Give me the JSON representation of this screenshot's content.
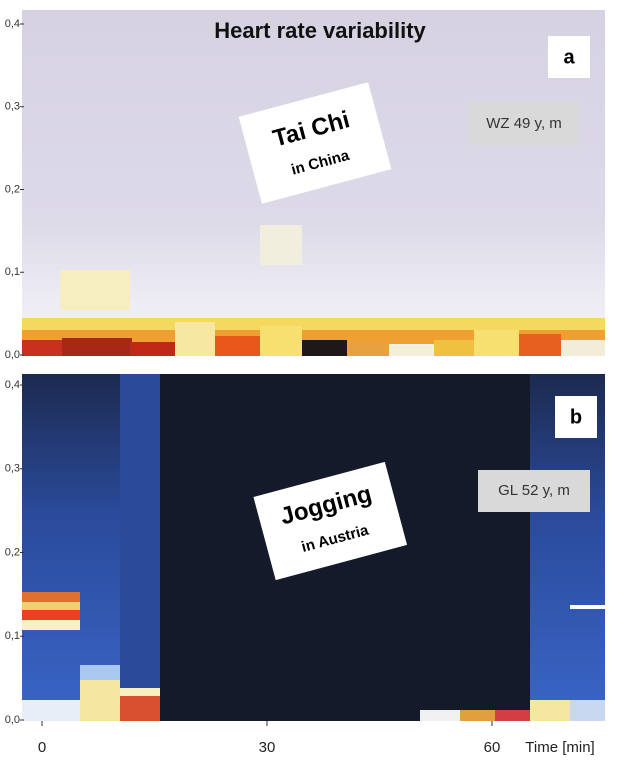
{
  "title": "Heart rate variability",
  "panels": [
    {
      "label": "a",
      "activity": "Tai Chi",
      "location": "in China",
      "subject": "WZ 49 y, m",
      "yticks": [
        {
          "value": 0,
          "label": "0,0"
        },
        {
          "value": 0.1,
          "label": "0,1"
        },
        {
          "value": 0.2,
          "label": "0,2"
        },
        {
          "value": 0.3,
          "label": "0,3"
        },
        {
          "value": 0.4,
          "label": "0,4"
        }
      ]
    },
    {
      "label": "b",
      "activity": "Jogging",
      "location": "in Austria",
      "subject": "GL 52 y, m",
      "yticks": [
        {
          "value": 0,
          "label": "0,0"
        },
        {
          "value": 0.1,
          "label": "0,1"
        },
        {
          "value": 0.2,
          "label": "0,2"
        },
        {
          "value": 0.3,
          "label": "0,3"
        },
        {
          "value": 0.4,
          "label": "0,4"
        }
      ]
    }
  ],
  "xaxis": {
    "ticks": [
      0,
      30,
      60
    ],
    "label": "Time [min]"
  }
}
